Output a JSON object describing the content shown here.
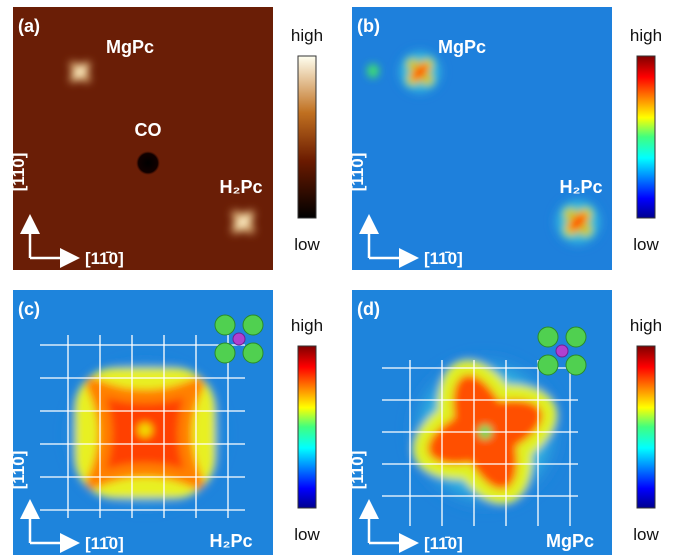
{
  "panels": [
    {
      "label": "(a)",
      "annotations": [
        "MgPc",
        "CO",
        "H₂Pc"
      ],
      "colorbar": {
        "high": "high",
        "low": "low"
      },
      "axes": {
        "vertical": "[110]",
        "horizontal": "[11̄0]"
      }
    },
    {
      "label": "(b)",
      "annotations": [
        "MgPc",
        "H₂Pc"
      ],
      "colorbar": {
        "high": "high",
        "low": "low"
      },
      "axes": {
        "vertical": "[110]",
        "horizontal": "[11̄0]"
      }
    },
    {
      "label": "(c)",
      "annotations": [
        "H₂Pc"
      ],
      "colorbar": {
        "high": "high",
        "low": "low"
      },
      "axes": {
        "vertical": "[110]",
        "horizontal": "[11̄0]"
      }
    },
    {
      "label": "(d)",
      "annotations": [
        "MgPc"
      ],
      "colorbar": {
        "high": "high",
        "low": "low"
      },
      "axes": {
        "vertical": "[110]",
        "horizontal": "[11̄0]"
      }
    }
  ]
}
